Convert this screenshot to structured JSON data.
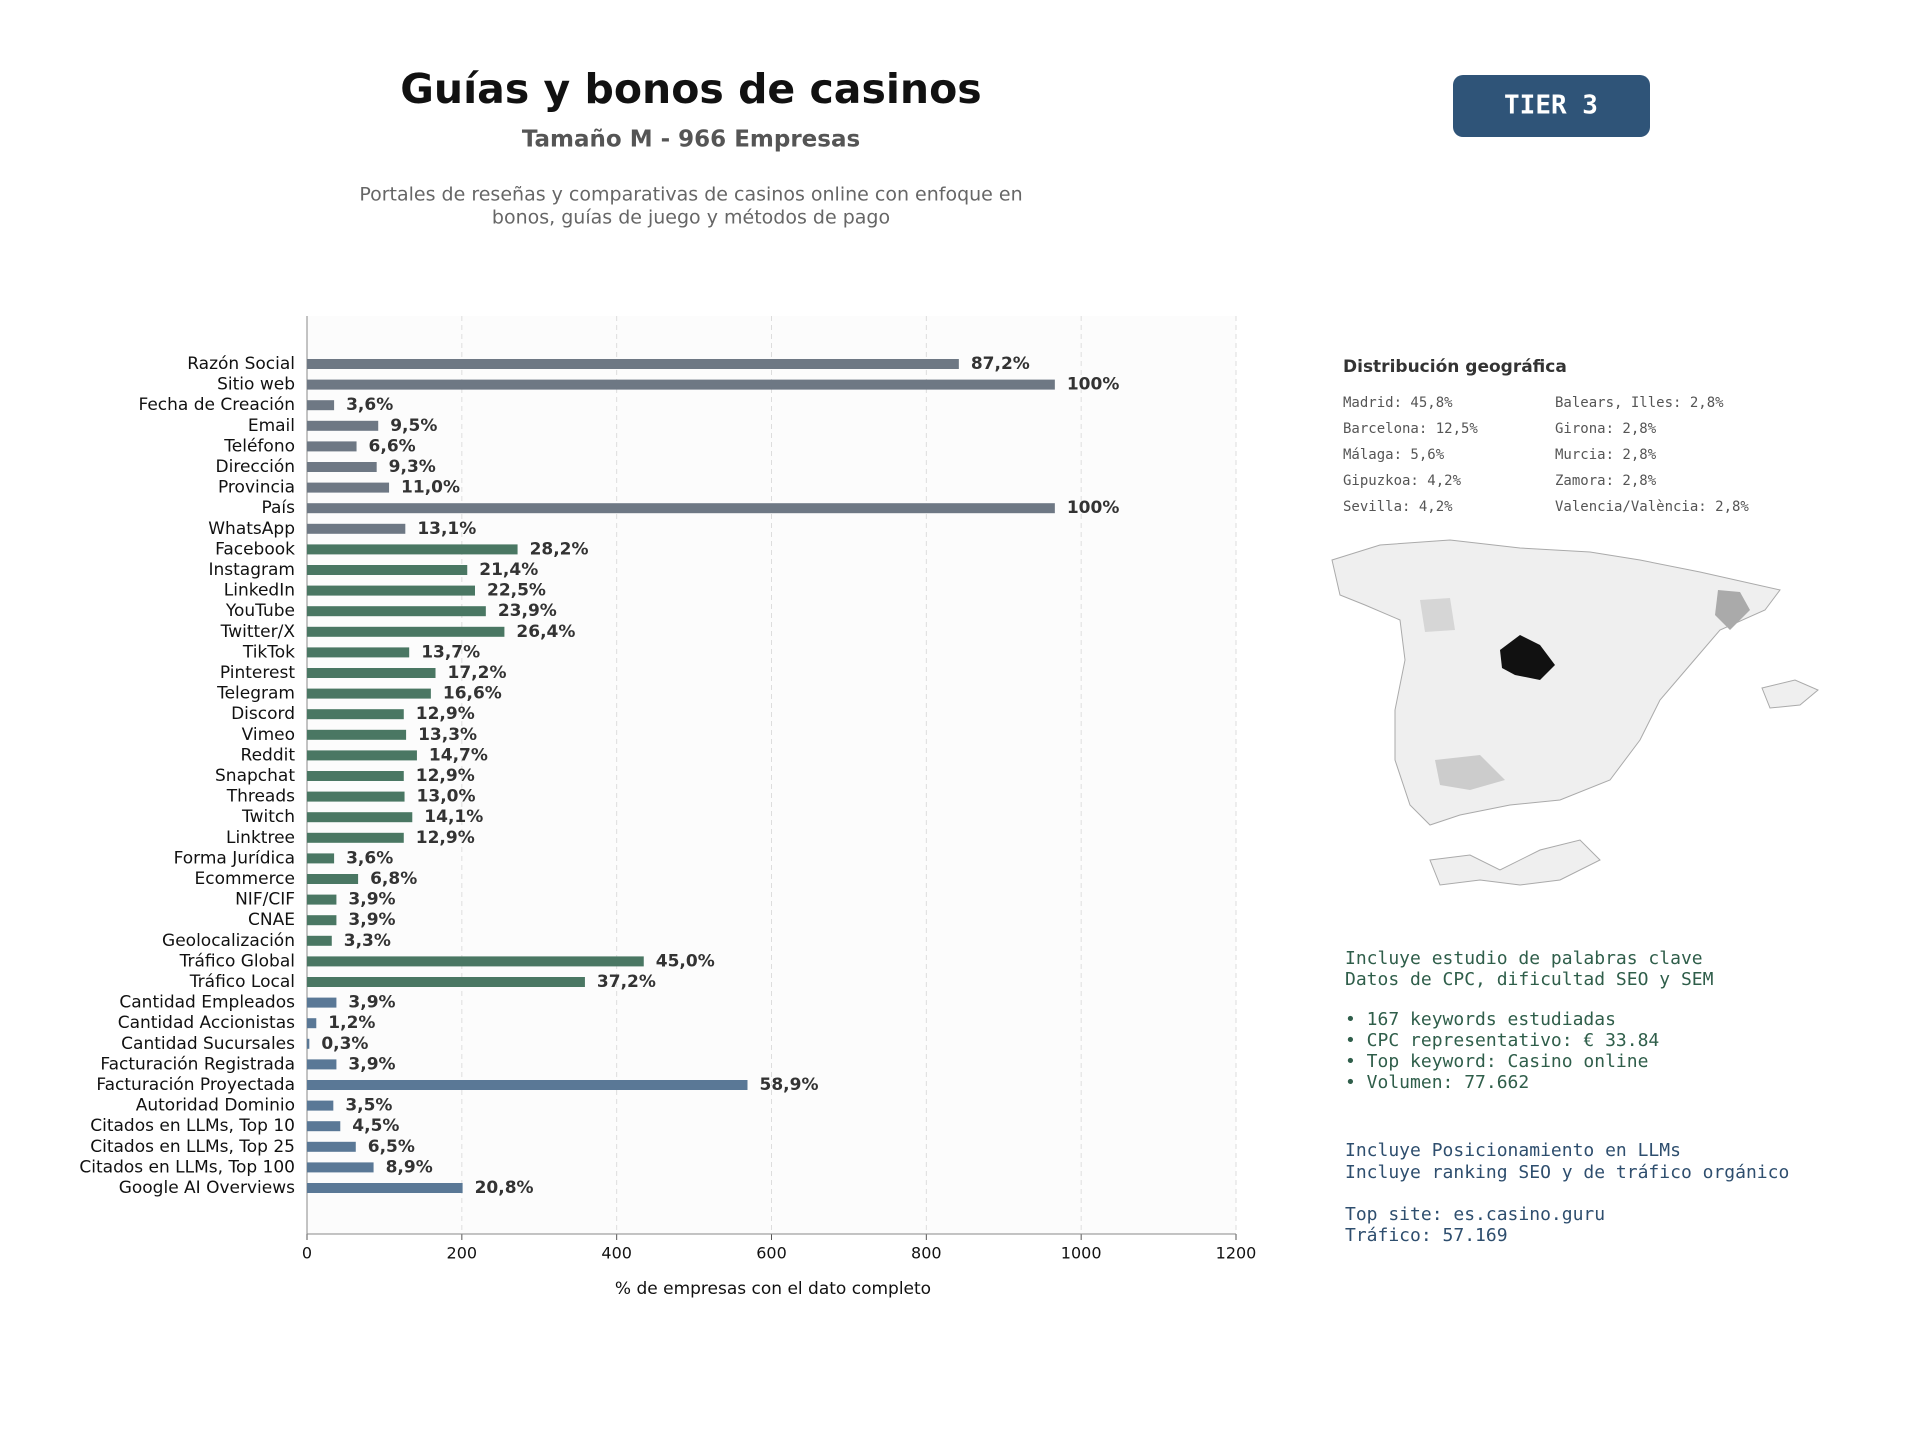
{
  "chart_data": {
    "type": "barh",
    "title": "Guías y bonos de casinos",
    "subtitle": "Tamaño M - 966 Empresas",
    "description": [
      "Portales de reseñas y comparativas de casinos online con enfoque en",
      "bonos, guías de juego y métodos de pago"
    ],
    "badge": "TIER 3",
    "xlabel": "% de empresas con el dato completo",
    "categories": [
      "Razón Social",
      "Sitio web",
      "Fecha de Creación",
      "Email",
      "Teléfono",
      "Dirección",
      "Provincia",
      "País",
      "WhatsApp",
      "Facebook",
      "Instagram",
      "LinkedIn",
      "YouTube",
      "Twitter/X",
      "TikTok",
      "Pinterest",
      "Telegram",
      "Discord",
      "Vimeo",
      "Reddit",
      "Snapchat",
      "Threads",
      "Twitch",
      "Linktree",
      "Forma Jurídica",
      "Ecommerce",
      "NIF/CIF",
      "CNAE",
      "Geolocalización",
      "Tráfico Global",
      "Tráfico Local",
      "Cantidad Empleados",
      "Cantidad Accionistas",
      "Cantidad Sucursales",
      "Facturación Registrada",
      "Facturación Proyectada",
      "Autoridad Dominio",
      "Citados en LLMs, Top 10",
      "Citados en LLMs, Top 25",
      "Citados en LLMs, Top 100",
      "Google AI Overviews"
    ],
    "values": [
      842,
      966,
      35,
      92,
      64,
      90,
      106,
      966,
      127,
      272,
      207,
      217,
      231,
      255,
      132,
      166,
      160,
      125,
      128,
      142,
      125,
      126,
      136,
      125,
      35,
      66,
      38,
      38,
      32,
      435,
      359,
      38,
      12,
      3,
      38,
      569,
      34,
      43,
      63,
      86,
      201
    ],
    "value_labels": [
      "87,2%",
      "100%",
      "3,6%",
      "9,5%",
      "6,6%",
      "9,3%",
      "11,0%",
      "100%",
      "13,1%",
      "28,2%",
      "21,4%",
      "22,5%",
      "23,9%",
      "26,4%",
      "13,7%",
      "17,2%",
      "16,6%",
      "12,9%",
      "13,3%",
      "14,7%",
      "12,9%",
      "13,0%",
      "14,1%",
      "12,9%",
      "3,6%",
      "6,8%",
      "3,9%",
      "3,9%",
      "3,3%",
      "45,0%",
      "37,2%",
      "3,9%",
      "1,2%",
      "0,3%",
      "3,9%",
      "58,9%",
      "3,5%",
      "4,5%",
      "6,5%",
      "8,9%",
      "20,8%"
    ],
    "colors": [
      "#6e7884",
      "#6e7884",
      "#6e7884",
      "#6e7884",
      "#6e7884",
      "#6e7884",
      "#6e7884",
      "#6e7884",
      "#6e7884",
      "#4a7763",
      "#4a7763",
      "#4a7763",
      "#4a7763",
      "#4a7763",
      "#4a7763",
      "#4a7763",
      "#4a7763",
      "#4a7763",
      "#4a7763",
      "#4a7763",
      "#4a7763",
      "#4a7763",
      "#4a7763",
      "#4a7763",
      "#4a7763",
      "#4a7763",
      "#4a7763",
      "#4a7763",
      "#4a7763",
      "#4a7763",
      "#4a7763",
      "#5a7896",
      "#5a7896",
      "#5a7896",
      "#5a7896",
      "#5a7896",
      "#5a7896",
      "#5a7896",
      "#5a7896",
      "#5a7896",
      "#5a7896"
    ],
    "xlim": [
      0,
      1200
    ],
    "xticks": [
      0,
      200,
      400,
      600,
      800,
      1000,
      1200
    ],
    "grid": true,
    "geo": {
      "title": "Distribución geográfica",
      "columns": [
        [
          "Madrid: 45,8%",
          "Barcelona: 12,5%",
          "Málaga: 5,6%",
          "Gipuzkoa: 4,2%",
          "Sevilla: 4,2%"
        ],
        [
          "Balears, Illes: 2,8%",
          "Girona: 2,8%",
          "Murcia: 2,8%",
          "Zamora: 2,8%",
          "Valencia/València: 2,8%"
        ]
      ]
    },
    "notes": [
      [
        "Incluye estudio de palabras clave",
        "Datos de CPC, dificultad SEO y SEM"
      ],
      [
        "• 167 keywords estudiadas",
        "• CPC representativo: € 33.84",
        "• Top keyword: Casino online",
        "• Volumen: 77.662"
      ],
      [
        "Incluye Posicionamiento en LLMs",
        "Incluye ranking SEO y de tráfico orgánico"
      ],
      [
        "Top site: es.casino.guru",
        "Tráfico: 57.169"
      ]
    ]
  }
}
